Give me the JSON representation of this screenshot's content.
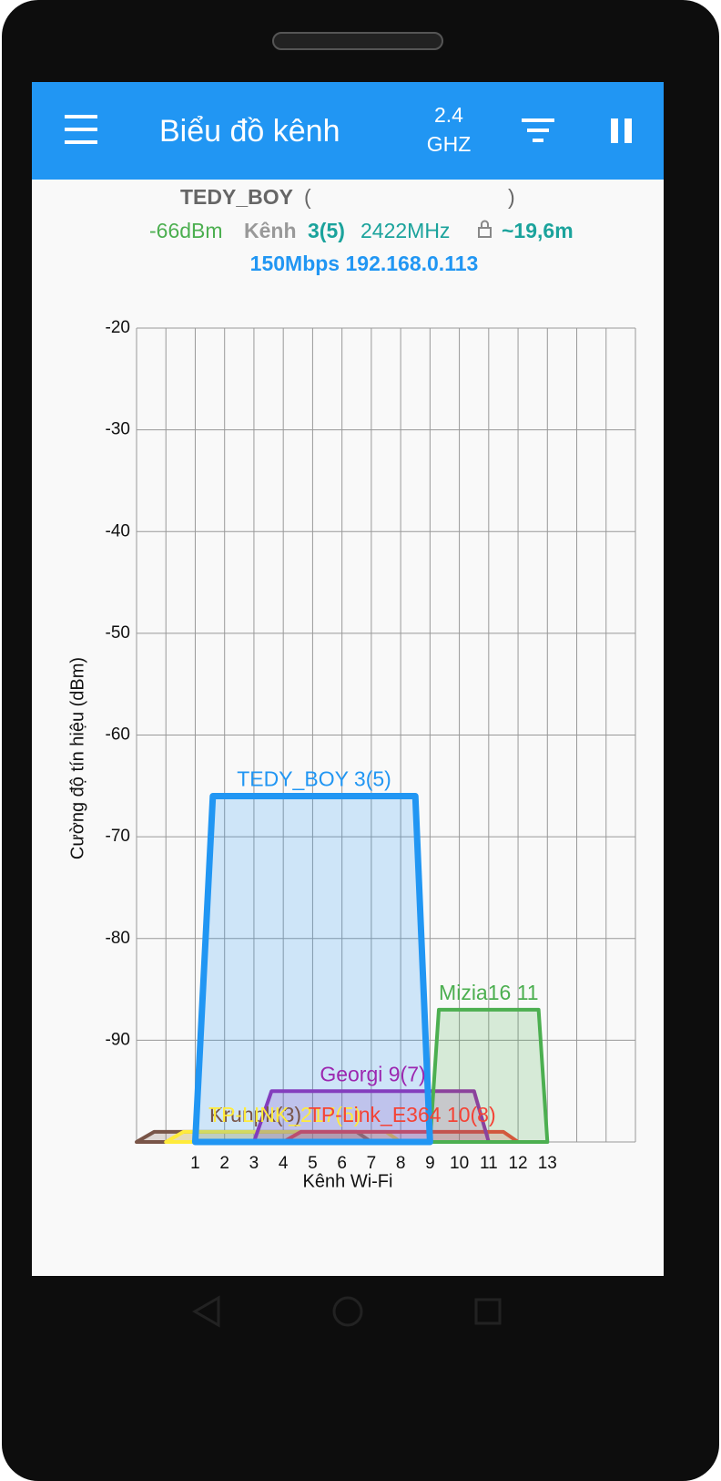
{
  "app_bar": {
    "title": "Biểu đồ kênh",
    "band": "2.4",
    "band_unit": "GHZ"
  },
  "connection": {
    "ssid": "TEDY_BOY",
    "open_paren": "(",
    "close_paren": ")",
    "signal": "-66dBm",
    "channel_label": "Kênh",
    "channel": "3(5)",
    "frequency": "2422MHz",
    "distance": "~19,6m",
    "speed_ip": "150Mbps 192.168.0.113"
  },
  "chart_data": {
    "type": "area",
    "y_label": "Cường độ tín hiệu (dBm)",
    "x_label": "Kênh Wi-Fi",
    "xlim": [
      -1,
      16
    ],
    "ylim": [
      -100,
      -20
    ],
    "xticks": [
      1,
      2,
      3,
      4,
      5,
      6,
      7,
      8,
      9,
      10,
      11,
      12,
      13
    ],
    "yticks": [
      -20,
      -30,
      -40,
      -50,
      -60,
      -70,
      -80,
      -90
    ],
    "grid": true,
    "series": [
      {
        "name": "Krunpk(3)",
        "color": "#795548",
        "x": [
          -1,
          -0.4,
          6.5,
          7
        ],
        "values": [
          -100,
          -99,
          -99,
          -100
        ]
      },
      {
        "name": "TP-LINK_217(5)",
        "color": "#FFEB3B",
        "x": [
          0,
          0.6,
          7.5,
          8
        ],
        "values": [
          -100,
          -99,
          -99,
          -100
        ]
      },
      {
        "name": "TP-Link_E364 10(8)",
        "color": "#F44336",
        "x": [
          4,
          4.6,
          11.5,
          12
        ],
        "values": [
          -100,
          -99,
          -99,
          -100
        ]
      },
      {
        "name": "Georgi 9(7)",
        "color": "#9C27B0",
        "x": [
          3,
          3.6,
          10.5,
          11
        ],
        "values": [
          -100,
          -95,
          -95,
          -100
        ]
      },
      {
        "name": "Mizia16 11",
        "color": "#4CAF50",
        "x": [
          9,
          9.3,
          12.7,
          13
        ],
        "values": [
          -100,
          -87,
          -87,
          -100
        ]
      },
      {
        "name": "TEDY_BOY 3(5)",
        "color": "#2196F3",
        "x": [
          1,
          1.6,
          8.5,
          9
        ],
        "values": [
          -100,
          -66,
          -66,
          -100
        ]
      }
    ]
  }
}
